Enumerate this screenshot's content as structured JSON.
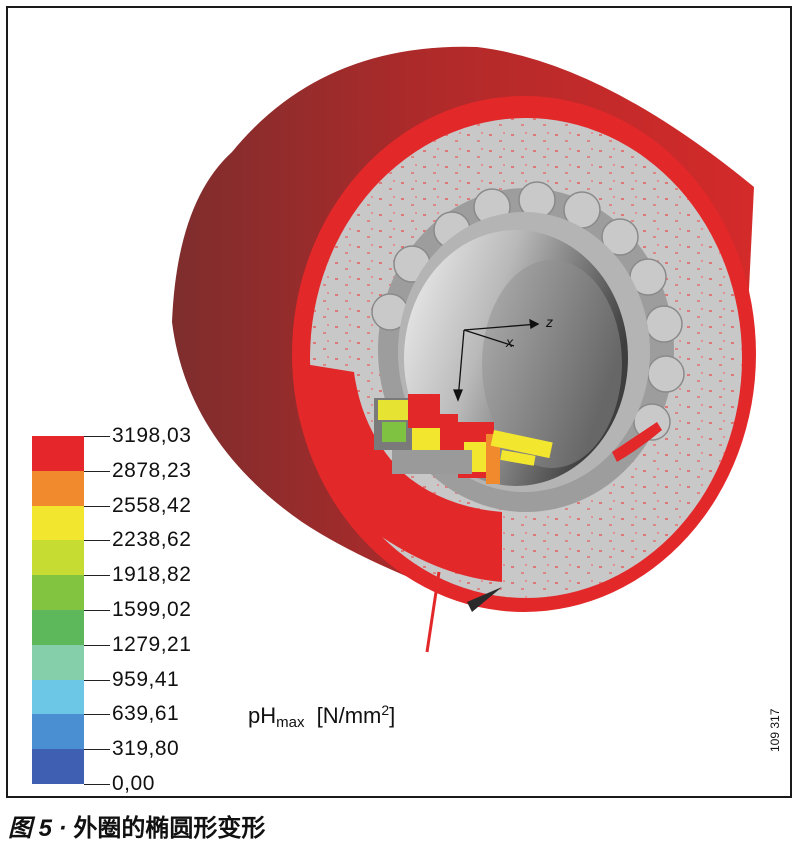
{
  "legend": {
    "values": [
      "3198,03",
      "2878,23",
      "2558,42",
      "2238,62",
      "1918,82",
      "1599,02",
      "1279,21",
      "959,41",
      "639,61",
      "319,80",
      "0,00"
    ],
    "colors": [
      "#e5272b",
      "#e5272b",
      "#f08a2c",
      "#f3e62e",
      "#c6dc32",
      "#82c440",
      "#5cb85a",
      "#85cfaa",
      "#6cc7e6",
      "#4a8fd2",
      "#3e5fb2"
    ]
  },
  "unit_label": {
    "main": "pH",
    "sub": "max",
    "unit": "[N/mm",
    "exp": "2",
    "close": "]"
  },
  "axes": {
    "z": "z",
    "x": "x"
  },
  "figure_id": "109 317",
  "caption": {
    "number": "图 5 ·",
    "text": "外圈的椭圆形变形"
  }
}
